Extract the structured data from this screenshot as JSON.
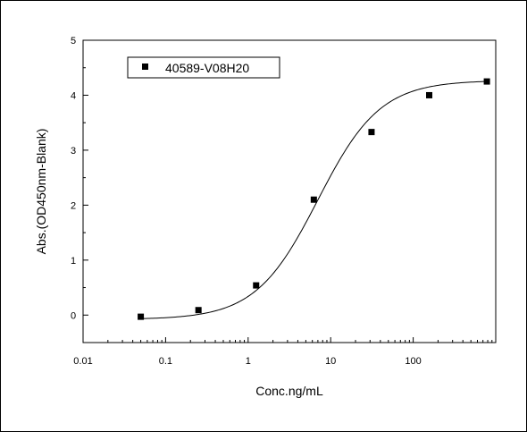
{
  "chart_data": {
    "type": "scatter",
    "xlabel": "Conc.ng/mL",
    "ylabel": "Abs.(OD450nm-Blank)",
    "x_scale": "log",
    "xlim": [
      0.01,
      1000
    ],
    "ylim": [
      -0.5,
      5
    ],
    "x_ticks": [
      "0.01",
      "0.1",
      "1",
      "10",
      "100"
    ],
    "y_ticks": [
      "0",
      "1",
      "2",
      "3",
      "4",
      "5"
    ],
    "legend_position": "top-left",
    "grid": false,
    "series": [
      {
        "name": "40589-V08H20",
        "marker": "square",
        "color": "#000000",
        "x": [
          0.05,
          0.25,
          1.25,
          6.25,
          31.25,
          156.25,
          781.25
        ],
        "y": [
          -0.03,
          0.09,
          0.54,
          2.1,
          3.33,
          4.0,
          4.25
        ]
      }
    ],
    "fit_curve": {
      "type": "4PL",
      "color": "#000000",
      "bottom": -0.08,
      "top": 4.27,
      "ec50": 7.0,
      "hill": 1.15,
      "x_range": [
        0.05,
        781.25
      ]
    }
  }
}
